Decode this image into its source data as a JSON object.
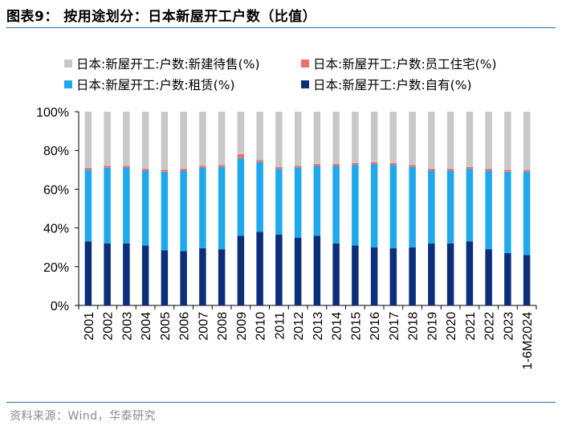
{
  "title": "图表9： 按用途划分：日本新屋开工户数（比值）",
  "source": "资料来源：Wind，华泰研究",
  "chart_data": {
    "type": "bar",
    "stacked": true,
    "title": "按用途划分：日本新屋开工户数（比值）",
    "xlabel": "",
    "ylabel": "",
    "ylim": [
      0,
      100
    ],
    "yticks": [
      "0%",
      "20%",
      "40%",
      "60%",
      "80%",
      "100%"
    ],
    "categories": [
      "2001",
      "2002",
      "2003",
      "2004",
      "2005",
      "2006",
      "2007",
      "2008",
      "2009",
      "2010",
      "2011",
      "2012",
      "2013",
      "2014",
      "2015",
      "2016",
      "2017",
      "2018",
      "2019",
      "2020",
      "2021",
      "2022",
      "2023",
      "1-6M2024"
    ],
    "series": [
      {
        "name": "日本:新屋开工:户数:自有(%)",
        "color": "#0c2f7a",
        "values": [
          33,
          32,
          32,
          31,
          28.5,
          28,
          29.5,
          29,
          36,
          38,
          36.5,
          35,
          36,
          32,
          31,
          30,
          29.5,
          30,
          32,
          32,
          33,
          29,
          27,
          26
        ]
      },
      {
        "name": "日本:新屋开工:户数:租赁(%)",
        "color": "#1fa9ec",
        "values": [
          37,
          39,
          39,
          38.5,
          40.5,
          41.5,
          41.5,
          42.5,
          40,
          36,
          34,
          36,
          36,
          40,
          41.5,
          43,
          43,
          41.5,
          37.5,
          37.5,
          37.5,
          40.5,
          42,
          43
        ]
      },
      {
        "name": "日本:新屋开工:户数:员工住宅(%)",
        "color": "#f36b6b",
        "values": [
          1,
          1,
          1,
          1,
          1,
          1,
          1,
          1,
          2,
          1,
          1,
          1,
          1,
          1,
          1,
          1,
          1,
          1,
          1,
          1,
          1,
          1,
          1,
          1
        ]
      },
      {
        "name": "日本:新屋开工:户数:新建待售(%)",
        "color": "#c8c8c8",
        "values": [
          29,
          28,
          28,
          29.5,
          30,
          29.5,
          28,
          27.5,
          22,
          25,
          28.5,
          28,
          27,
          27,
          26.5,
          26,
          26.5,
          27.5,
          29.5,
          29.5,
          28.5,
          29.5,
          30,
          30
        ]
      }
    ],
    "legend": [
      {
        "name": "日本:新屋开工:户数:新建待售(%)",
        "color": "#c8c8c8"
      },
      {
        "name": "日本:新屋开工:户数:员工住宅(%)",
        "color": "#f36b6b"
      },
      {
        "name": "日本:新屋开工:户数:租赁(%)",
        "color": "#1fa9ec"
      },
      {
        "name": "日本:新屋开工:户数:自有(%)",
        "color": "#0c2f7a"
      }
    ]
  }
}
